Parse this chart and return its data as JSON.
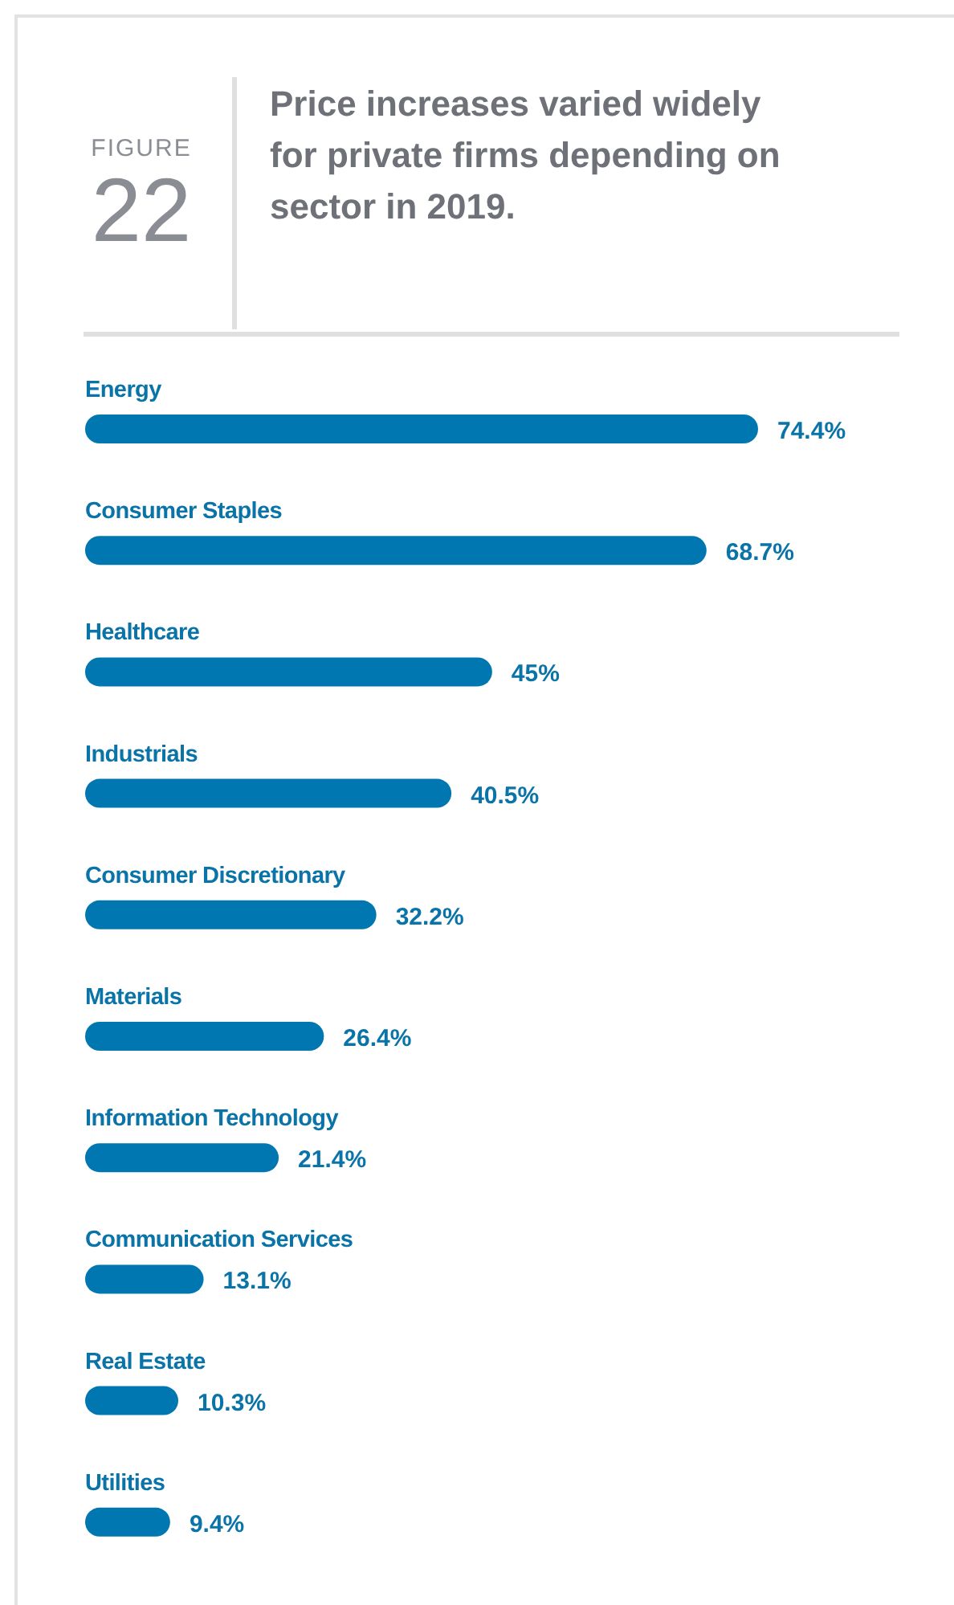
{
  "chart_data": {
    "type": "bar",
    "orientation": "horizontal",
    "title": "Price increases varied widely for private firms depending on sector in 2019.",
    "annotations": [
      "FIGURE",
      "22"
    ],
    "categories": [
      "Energy",
      "Consumer Staples",
      "Healthcare",
      "Industrials",
      "Consumer Discretionary",
      "Materials",
      "Information Technology",
      "Communication Services",
      "Real Estate",
      "Utilities"
    ],
    "values": [
      74.4,
      68.7,
      45,
      40.5,
      32.2,
      26.4,
      21.4,
      13.1,
      10.3,
      9.4
    ],
    "value_labels": [
      "74.4%",
      "68.7%",
      "45%",
      "40.5%",
      "32.2%",
      "26.4%",
      "21.4%",
      "13.1%",
      "10.3%",
      "9.4%"
    ],
    "color": "#0077b1"
  }
}
